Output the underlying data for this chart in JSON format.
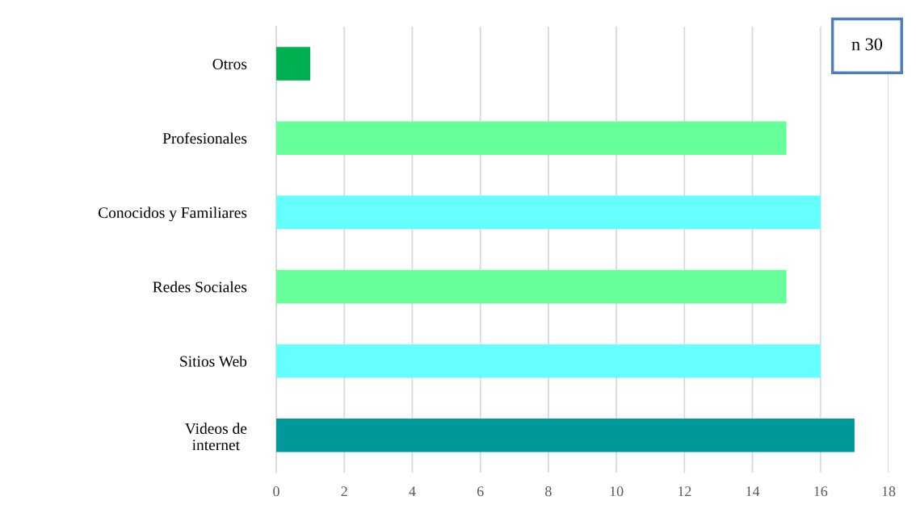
{
  "chart_data": {
    "type": "bar",
    "orientation": "horizontal",
    "categories": [
      "Otros",
      "Profesionales",
      "Conocidos y Familiares",
      "Redes Sociales",
      "Sitios Web",
      "Videos de\ninternet"
    ],
    "values": [
      1,
      15,
      16,
      15,
      16,
      17
    ],
    "colors": [
      "#00b050",
      "#66ff99",
      "#66ffff",
      "#66ff99",
      "#66ffff",
      "#009999"
    ],
    "xlim": [
      0,
      18
    ],
    "xticks": [
      0,
      2,
      4,
      6,
      8,
      10,
      12,
      14,
      16,
      18
    ],
    "grid": "x",
    "legend": false,
    "annotations": [
      "n 30"
    ]
  }
}
